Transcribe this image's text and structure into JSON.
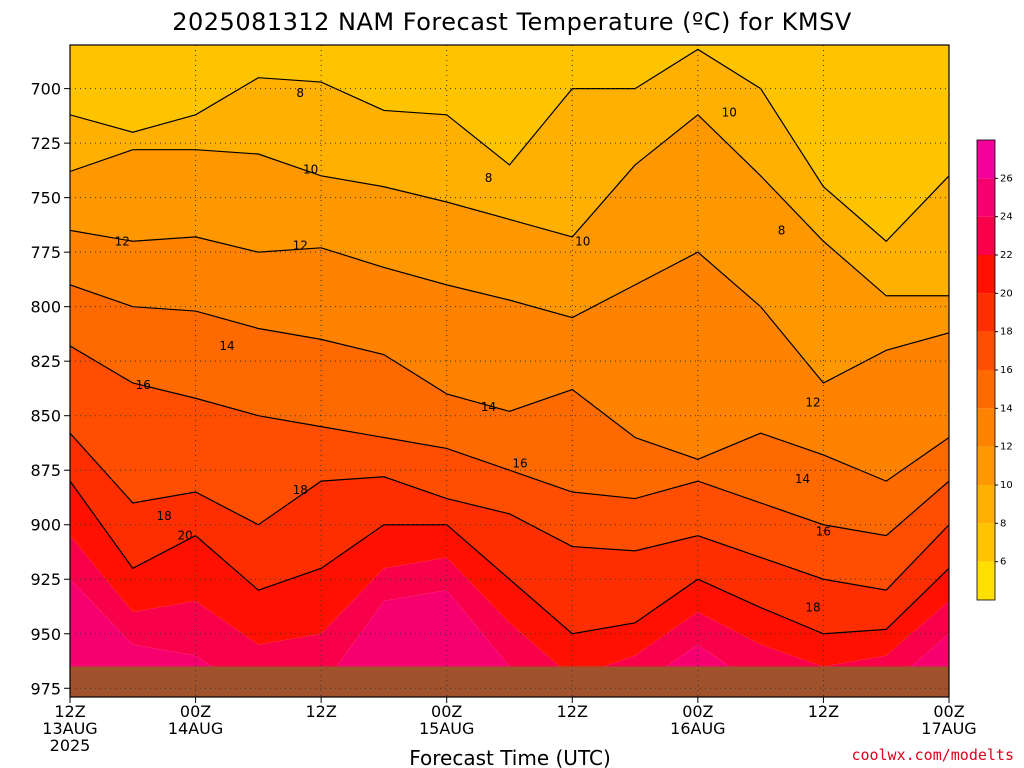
{
  "chart_data": {
    "type": "heatmap",
    "title": "2025081312 NAM Forecast Temperature (ºC) for KMSV",
    "xlabel": "Forecast Time (UTC)",
    "ylabel": "",
    "credit": "coolwx.com/modelts",
    "x_ticks": [
      {
        "hour": 0,
        "line1": "12Z",
        "line2": "13AUG",
        "line3": "2025"
      },
      {
        "hour": 12,
        "line1": "00Z",
        "line2": "14AUG",
        "line3": ""
      },
      {
        "hour": 24,
        "line1": "12Z",
        "line2": "",
        "line3": ""
      },
      {
        "hour": 36,
        "line1": "00Z",
        "line2": "15AUG",
        "line3": ""
      },
      {
        "hour": 48,
        "line1": "12Z",
        "line2": "",
        "line3": ""
      },
      {
        "hour": 60,
        "line1": "00Z",
        "line2": "16AUG",
        "line3": ""
      },
      {
        "hour": 72,
        "line1": "12Z",
        "line2": "",
        "line3": ""
      },
      {
        "hour": 84,
        "line1": "00Z",
        "line2": "17AUG",
        "line3": ""
      }
    ],
    "xlim": [
      0,
      84
    ],
    "y_ticks": [
      700,
      725,
      750,
      775,
      800,
      825,
      850,
      875,
      900,
      925,
      950,
      975
    ],
    "ylim": [
      680,
      979
    ],
    "grid": true,
    "colorbar": {
      "labels": [
        6,
        8,
        10,
        12,
        14,
        16,
        18,
        20,
        22,
        24,
        26
      ],
      "range": [
        4,
        28
      ],
      "colors": [
        "#ffdf00",
        "#ffc400",
        "#ffb000",
        "#ff9800",
        "#ff8200",
        "#ff6a00",
        "#ff4e00",
        "#ff2e00",
        "#ff1000",
        "#f8004a",
        "#f60070",
        "#f4009a"
      ]
    },
    "contour_levels": [
      8,
      10,
      12,
      14,
      16,
      18,
      20
    ],
    "contour_labels": [
      {
        "value": 8,
        "hour": 22.0,
        "pres": 702
      },
      {
        "value": 8,
        "hour": 40.0,
        "pres": 741
      },
      {
        "value": 8,
        "hour": 68.0,
        "pres": 765
      },
      {
        "value": 10,
        "hour": 63.0,
        "pres": 711
      },
      {
        "value": 10,
        "hour": 23.0,
        "pres": 737
      },
      {
        "value": 10,
        "hour": 49.0,
        "pres": 770
      },
      {
        "value": 12,
        "hour": 5.0,
        "pres": 770
      },
      {
        "value": 12,
        "hour": 22.0,
        "pres": 772
      },
      {
        "value": 12,
        "hour": 71.0,
        "pres": 844
      },
      {
        "value": 14,
        "hour": 15.0,
        "pres": 818
      },
      {
        "value": 14,
        "hour": 40.0,
        "pres": 846
      },
      {
        "value": 14,
        "hour": 70.0,
        "pres": 879
      },
      {
        "value": 16,
        "hour": 7.0,
        "pres": 836
      },
      {
        "value": 16,
        "hour": 43.0,
        "pres": 872
      },
      {
        "value": 16,
        "hour": 72.0,
        "pres": 903
      },
      {
        "value": 18,
        "hour": 9.0,
        "pres": 896
      },
      {
        "value": 18,
        "hour": 22.0,
        "pres": 884
      },
      {
        "value": 18,
        "hour": 71.0,
        "pres": 938
      },
      {
        "value": 20,
        "hour": 11.0,
        "pres": 905
      }
    ],
    "level_profiles": {
      "hours": [
        0,
        6,
        12,
        18,
        24,
        30,
        36,
        42,
        48,
        54,
        60,
        66,
        72,
        78,
        84
      ],
      "boundaries": [
        {
          "value": 8,
          "pres": [
            712,
            720,
            712,
            695,
            697,
            710,
            712,
            735,
            700,
            700,
            682,
            700,
            745,
            770,
            740
          ]
        },
        {
          "value": 10,
          "pres": [
            738,
            728,
            728,
            730,
            740,
            745,
            752,
            760,
            768,
            735,
            712,
            740,
            770,
            795,
            795
          ]
        },
        {
          "value": 12,
          "pres": [
            765,
            770,
            768,
            775,
            773,
            782,
            790,
            797,
            805,
            790,
            775,
            800,
            835,
            820,
            812
          ]
        },
        {
          "value": 14,
          "pres": [
            790,
            800,
            802,
            810,
            815,
            822,
            840,
            848,
            838,
            860,
            870,
            858,
            868,
            880,
            860
          ]
        },
        {
          "value": 16,
          "pres": [
            818,
            835,
            842,
            850,
            855,
            860,
            865,
            875,
            885,
            888,
            880,
            890,
            900,
            905,
            880
          ]
        },
        {
          "value": 18,
          "pres": [
            858,
            890,
            885,
            900,
            880,
            878,
            888,
            895,
            910,
            912,
            905,
            915,
            925,
            930,
            900
          ]
        },
        {
          "value": 20,
          "pres": [
            880,
            920,
            905,
            930,
            920,
            900,
            900,
            925,
            950,
            945,
            925,
            938,
            950,
            948,
            920
          ]
        },
        {
          "value": 22,
          "pres": [
            905,
            940,
            935,
            955,
            950,
            920,
            915,
            945,
            970,
            960,
            940,
            955,
            965,
            960,
            935
          ]
        },
        {
          "value": 24,
          "pres": [
            925,
            955,
            960,
            980,
            975,
            935,
            930,
            965,
            990,
            975,
            955,
            975,
            985,
            975,
            950
          ]
        }
      ]
    },
    "ground": {
      "color": "#a0522d",
      "pres": 965
    }
  }
}
